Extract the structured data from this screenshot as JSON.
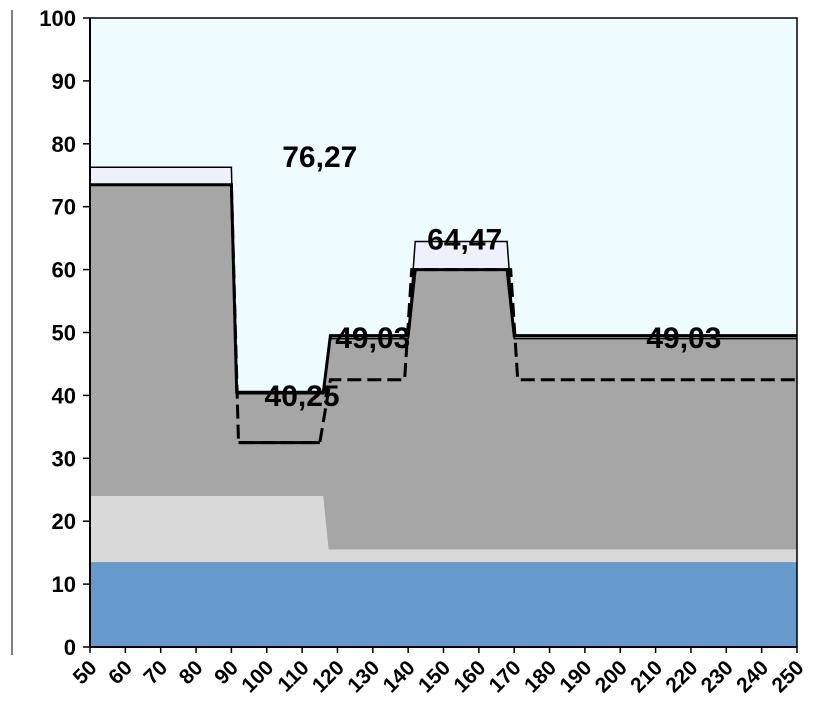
{
  "chart_data": {
    "type": "area",
    "title": "",
    "xlabel": "",
    "ylabel": "",
    "xlim": [
      50,
      250
    ],
    "ylim": [
      0,
      100
    ],
    "x_ticks": [
      50,
      60,
      70,
      80,
      90,
      100,
      110,
      120,
      130,
      140,
      150,
      160,
      170,
      180,
      190,
      200,
      210,
      220,
      230,
      240,
      250
    ],
    "y_ticks": [
      0,
      10,
      20,
      30,
      40,
      50,
      60,
      70,
      80,
      90,
      100
    ],
    "grid": false,
    "legend": "none",
    "colors": {
      "plot_background": "#eefbff",
      "blue_band": "#6699cc",
      "light_gray_band": "#d9d9d9",
      "dark_gray_band": "#a6a6a6",
      "top_band": "#eef0fb",
      "lines": "#000000"
    },
    "series": [
      {
        "values": [
          [
            50,
            13.5
          ],
          [
            250,
            13.5
          ]
        ]
      },
      {
        "values": [
          [
            50,
            24
          ],
          [
            116,
            24
          ],
          [
            117.5,
            15.5
          ],
          [
            250,
            15.5
          ]
        ]
      },
      {
        "values": [
          [
            50,
            73.5
          ],
          [
            90,
            73.5
          ],
          [
            91.5,
            40.5
          ],
          [
            116,
            40.5
          ],
          [
            118,
            49.5
          ],
          [
            140,
            49.5
          ],
          [
            142,
            60
          ],
          [
            168,
            60
          ],
          [
            170,
            49.5
          ],
          [
            250,
            49.5
          ]
        ]
      },
      {
        "values": [
          [
            50,
            76.27
          ],
          [
            90,
            76.27
          ],
          [
            91.5,
            40.25
          ],
          [
            116,
            40.25
          ],
          [
            118,
            49.03
          ],
          [
            140,
            49.03
          ],
          [
            142,
            64.47
          ],
          [
            168,
            64.47
          ],
          [
            170,
            49.03
          ],
          [
            250,
            49.03
          ]
        ]
      },
      {
        "values": [
          [
            50,
            73.5
          ],
          [
            90,
            73.5
          ],
          [
            91.5,
            40.5
          ],
          [
            116,
            40.5
          ],
          [
            118,
            49.5
          ],
          [
            140,
            49.5
          ],
          [
            142,
            60
          ],
          [
            168,
            60
          ],
          [
            170,
            49.5
          ],
          [
            250,
            49.5
          ]
        ]
      },
      {
        "values": [
          [
            90,
            73.5
          ],
          [
            92,
            32.5
          ],
          [
            115,
            32.5
          ],
          [
            118,
            42.5
          ],
          [
            139,
            42.5
          ],
          [
            141,
            60
          ],
          [
            169,
            60
          ],
          [
            171,
            42.5
          ],
          [
            250,
            42.5
          ]
        ]
      }
    ],
    "annotations": [
      {
        "text": "76,27",
        "x": 115,
        "y": 76.3
      },
      {
        "text": "40,25",
        "x": 110,
        "y": 38.3
      },
      {
        "text": "49,03",
        "x": 130,
        "y": 47.5
      },
      {
        "text": "64,47",
        "x": 156,
        "y": 63.2
      },
      {
        "text": "49,03",
        "x": 218,
        "y": 47.5
      }
    ]
  }
}
